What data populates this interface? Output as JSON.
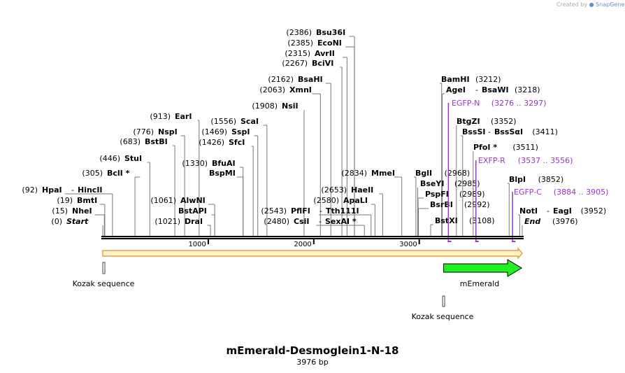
{
  "header": {
    "credit_prefix": "Created by",
    "credit_brand": "SnapGene"
  },
  "plasmid": {
    "name": "mEmerald-Desmoglein1-N-18",
    "length_label": "3976 bp"
  },
  "colors": {
    "orf_line": "#e8a040",
    "orf_fill": "#fff3c8",
    "feature_green": "#22ee22",
    "primer_purple": "#9933cc"
  },
  "axis": {
    "total_bp": 3976,
    "ticks": [
      {
        "bp": 1000,
        "label": "1000"
      },
      {
        "bp": 2000,
        "label": "2000"
      },
      {
        "bp": 3000,
        "label": "3000"
      }
    ]
  },
  "sites": [
    {
      "pos": "(2386)",
      "name": "Bsu36I",
      "bp": 2386
    },
    {
      "pos": "(2385)",
      "name": "EcoNI",
      "bp": 2385
    },
    {
      "pos": "(2315)",
      "name": "AvrII",
      "bp": 2315
    },
    {
      "pos": "(2267)",
      "name": "BciVI",
      "bp": 2267
    },
    {
      "pos": "(2162)",
      "name": "BsaHI",
      "bp": 2162
    },
    {
      "pos": "(2063)",
      "name": "XmnI",
      "bp": 2063
    },
    {
      "pos": "(1908)",
      "name": "NsiI",
      "bp": 1908
    },
    {
      "pos": "(913)",
      "name": "EarI",
      "bp": 913
    },
    {
      "pos": "(1556)",
      "name": "ScaI",
      "bp": 1556
    },
    {
      "pos": "(776)",
      "name": "NspI",
      "bp": 776
    },
    {
      "pos": "(1469)",
      "name": "SspI",
      "bp": 1469
    },
    {
      "pos": "(683)",
      "name": "BstBI",
      "bp": 683
    },
    {
      "pos": "(1426)",
      "name": "SfcI",
      "bp": 1426
    },
    {
      "pos": "(446)",
      "name": "StuI",
      "bp": 446
    },
    {
      "pos": "(1330)",
      "name": "BfuAI",
      "bp": 1330
    },
    {
      "pos": "(305)",
      "name": "BclI *",
      "bp": 305
    },
    {
      "pos": "",
      "name": "BspMI",
      "bp": 1330
    },
    {
      "pos": "(2834)",
      "name": "MmeI",
      "bp": 2834
    },
    {
      "pos": "(92)",
      "name": "HpaI",
      "name2": "HincII",
      "bp": 92
    },
    {
      "pos": "(19)",
      "name": "BmtI",
      "bp": 19
    },
    {
      "pos": "(1061)",
      "name": "AlwNI",
      "bp": 1061
    },
    {
      "pos": "(15)",
      "name": "NheI",
      "bp": 15
    },
    {
      "pos": "(2653)",
      "name": "HaeII",
      "bp": 2653
    },
    {
      "pos": "",
      "name": "BstAPI",
      "bp": 1061
    },
    {
      "pos": "(2580)",
      "name": "ApaLI",
      "bp": 2580
    },
    {
      "pos": "(2543)",
      "name": "PflFI",
      "name2": "Tth111I",
      "bp": 2543
    },
    {
      "pos": "(1021)",
      "name": "DraI",
      "bp": 1021
    },
    {
      "pos": "(2480)",
      "name": "CsiI",
      "name2": "SexAI *",
      "bp": 2480
    },
    {
      "pos": "(3212)",
      "name": "BamHI",
      "bp": 3212
    },
    {
      "pos": "(3218)",
      "name": "AgeI",
      "name2": "BsaWI",
      "bp": 3218
    },
    {
      "pos": "(3352)",
      "name": "BtgZI",
      "bp": 3352
    },
    {
      "pos": "(3411)",
      "name": "BssSI",
      "name2": "BssSαI",
      "bp": 3411
    },
    {
      "pos": "(3511)",
      "name": "PfoI *",
      "bp": 3511
    },
    {
      "pos": "(2968)",
      "name": "BglI",
      "bp": 2968
    },
    {
      "pos": "(3852)",
      "name": "BlpI",
      "bp": 3852
    },
    {
      "pos": "(2985)",
      "name": "BseYI",
      "bp": 2985
    },
    {
      "pos": "(2989)",
      "name": "PspFI",
      "bp": 2989
    },
    {
      "pos": "(2992)",
      "name": "BsrBI",
      "bp": 2992
    },
    {
      "pos": "(3952)",
      "name": "NotI",
      "name2": "EagI",
      "bp": 3952
    },
    {
      "pos": "(3108)",
      "name": "BstXI",
      "bp": 3108
    }
  ],
  "marks": [
    {
      "pos": "(0)",
      "name": "Start",
      "bp": 0
    },
    {
      "pos": "(3976)",
      "name": "End",
      "bp": 3976
    }
  ],
  "primers": [
    {
      "name": "EGFP-N",
      "range": "(3276 .. 3297)",
      "start": 3276,
      "end": 3297
    },
    {
      "name": "EXFP-R",
      "range": "(3537 .. 3556)",
      "start": 3537,
      "end": 3556
    },
    {
      "name": "EGFP-C",
      "range": "(3884 .. 3905)",
      "start": 3884,
      "end": 3905
    }
  ],
  "features": [
    {
      "name": "Kozak sequence",
      "bp": 0
    },
    {
      "name": "mEmerald",
      "start": 3231,
      "end": 3970
    },
    {
      "name": "Kozak sequence",
      "bp": 3221
    }
  ]
}
